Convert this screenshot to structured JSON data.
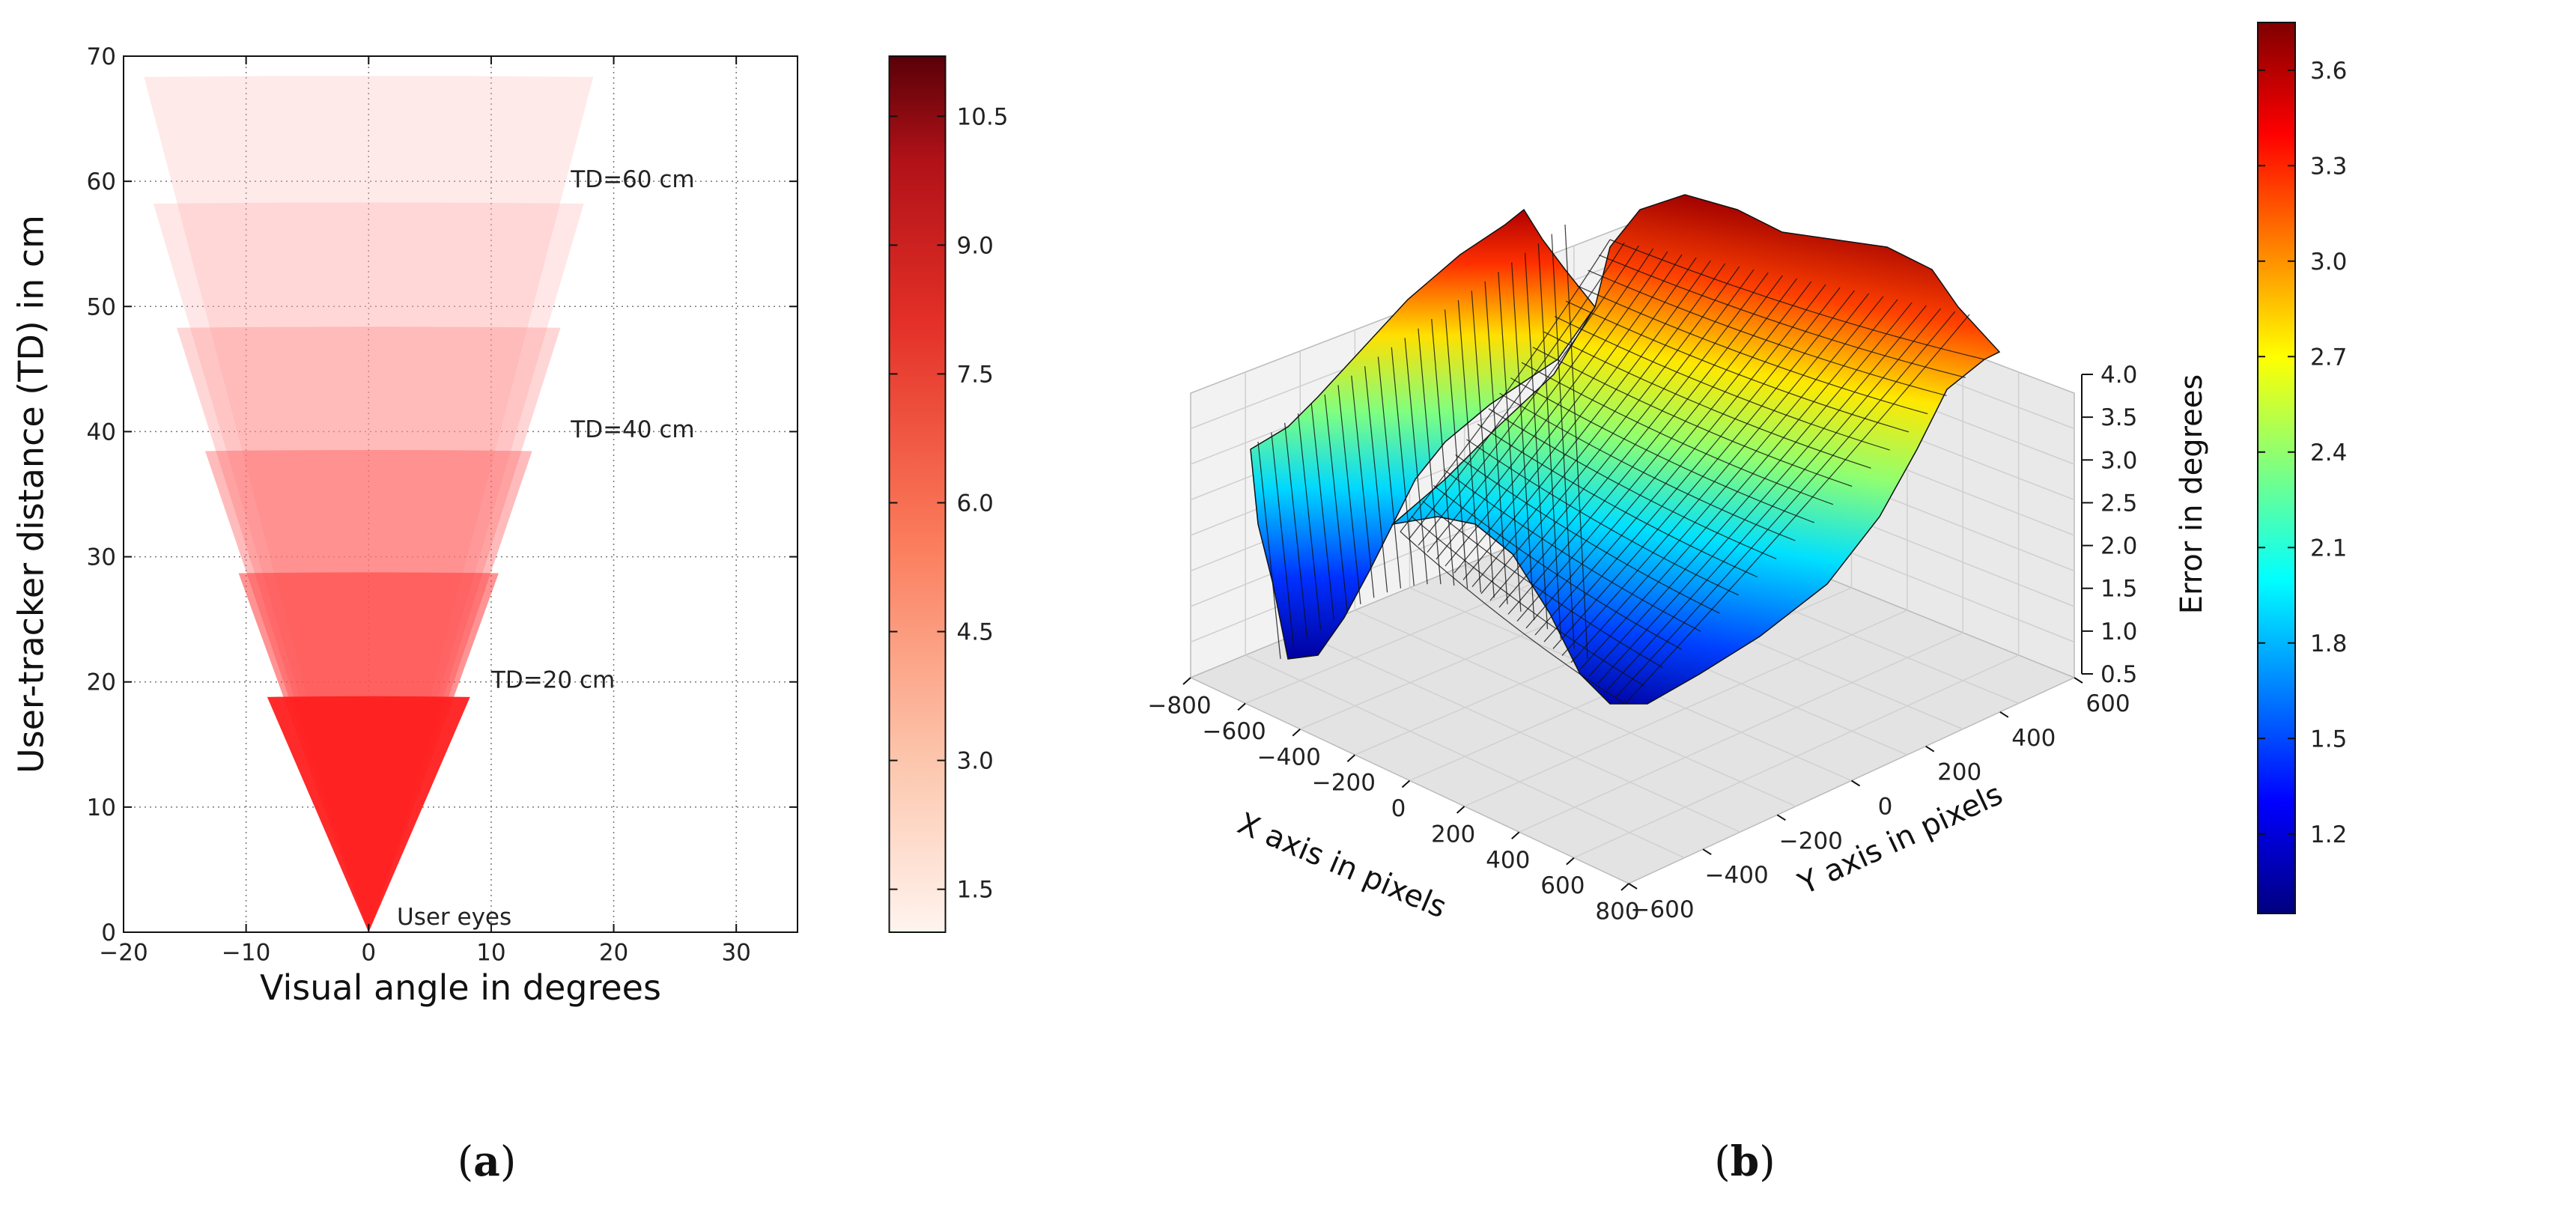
{
  "chart_data": [
    {
      "type": "area",
      "panel_label_prefix": "(",
      "panel_label_letter": "a",
      "panel_label_suffix": ")",
      "xlabel": "Visual angle in degrees",
      "ylabel": "User-tracker distance (TD) in cm",
      "xlim": [
        -20,
        35
      ],
      "ylim": [
        0,
        70
      ],
      "xticks": [
        -20,
        -10,
        0,
        10,
        20,
        30
      ],
      "xtick_labels": [
        "−20",
        "−10",
        "0",
        "10",
        "20",
        "30"
      ],
      "yticks": [
        0,
        10,
        20,
        30,
        40,
        50,
        60,
        70
      ],
      "ytick_labels": [
        "0",
        "10",
        "20",
        "30",
        "40",
        "50",
        "60",
        "70"
      ],
      "grid": true,
      "origin_label": "User eyes",
      "wedges": [
        {
          "radius": 20,
          "half_angle_deg": 20,
          "color": "#ff1f1f",
          "opacity": 0.95
        },
        {
          "radius": 30,
          "half_angle_deg": 17,
          "color": "#ff3a3a",
          "opacity": 0.55
        },
        {
          "radius": 40,
          "half_angle_deg": 16,
          "color": "#ff5555",
          "opacity": 0.4
        },
        {
          "radius": 50,
          "half_angle_deg": 15,
          "color": "#ff7777",
          "opacity": 0.3
        },
        {
          "radius": 60,
          "half_angle_deg": 14,
          "color": "#ff9a9a",
          "opacity": 0.24
        },
        {
          "radius": 70,
          "half_angle_deg": 12.5,
          "color": "#ffbbbb",
          "opacity": 0.3
        }
      ],
      "annotations": [
        {
          "text": "TD=60 cm",
          "x": 16.5,
          "y": 60.2
        },
        {
          "text": "TD=40 cm",
          "x": 16.5,
          "y": 40.2
        },
        {
          "text": "TD=20 cm",
          "x": 10,
          "y": 20.2
        }
      ],
      "colorbar": {
        "colormap": "Reds",
        "range": [
          1,
          11.2
        ],
        "ticks": [
          1.5,
          3.0,
          4.5,
          6.0,
          7.5,
          9.0,
          10.5
        ],
        "tick_labels": [
          "1.5",
          "3.0",
          "4.5",
          "6.0",
          "7.5",
          "9.0",
          "10.5"
        ]
      }
    },
    {
      "type": "surface",
      "panel_label_prefix": "(",
      "panel_label_letter": "b",
      "panel_label_suffix": ")",
      "xlabel": "X axis in pixels",
      "ylabel": "Y axis in pixels",
      "zlabel": "Error in degrees",
      "xlim": [
        -800,
        800
      ],
      "ylim": [
        -600,
        600
      ],
      "zlim": [
        0.5,
        4.0
      ],
      "xtick_labels": [
        "−800",
        "−600",
        "−400",
        "−200",
        "0",
        "200",
        "400",
        "600",
        "800"
      ],
      "ytick_labels": [
        "−600",
        "−400",
        "−200",
        "0",
        "200",
        "400",
        "600"
      ],
      "ztick_labels": [
        "0.5",
        "1.0",
        "1.5",
        "2.0",
        "2.5",
        "3.0",
        "3.5",
        "4.0"
      ],
      "colorbar": {
        "colormap": "jet",
        "range": [
          0.95,
          3.75
        ],
        "ticks": [
          1.2,
          1.5,
          1.8,
          2.1,
          2.4,
          2.7,
          3.0,
          3.3,
          3.6
        ],
        "tick_labels": [
          "1.2",
          "1.5",
          "1.8",
          "2.1",
          "2.4",
          "2.7",
          "3.0",
          "3.3",
          "3.6"
        ]
      }
    }
  ]
}
